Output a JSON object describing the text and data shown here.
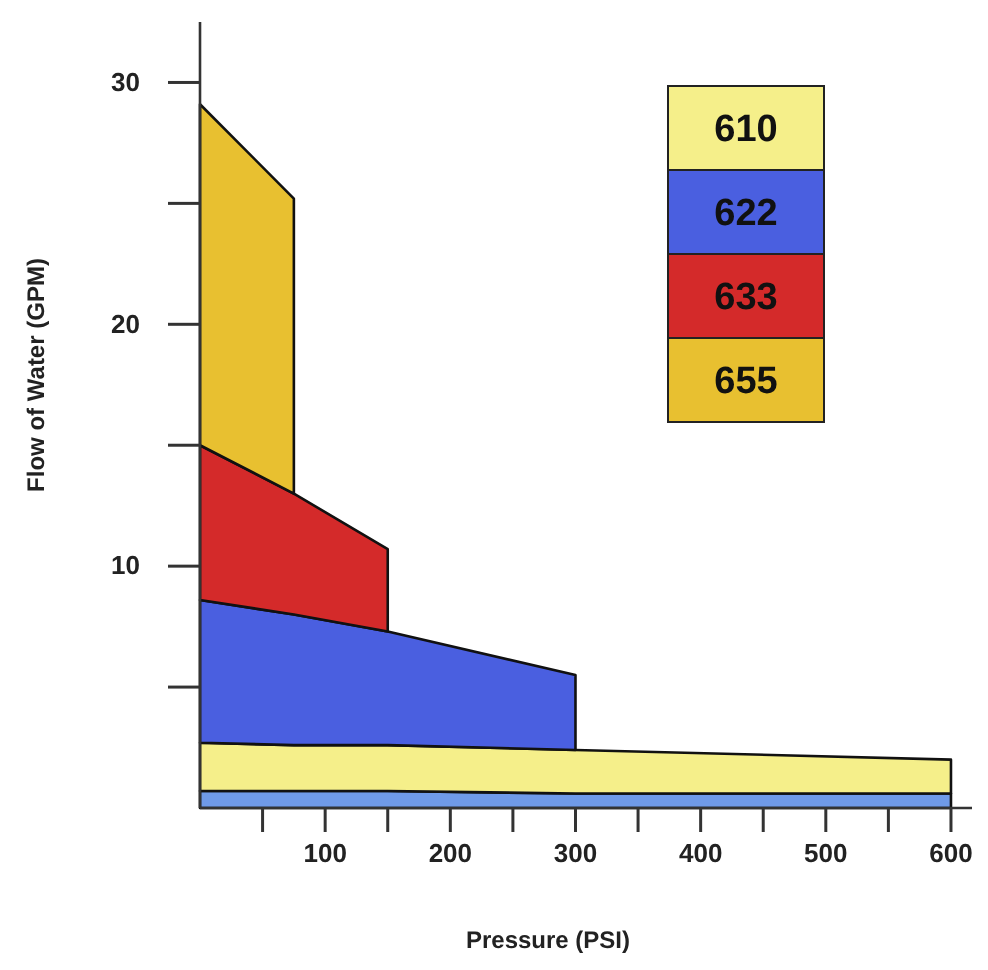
{
  "chart_data": {
    "type": "area",
    "stacked": true,
    "xlabel": "Pressure (PSI)",
    "ylabel": "Flow of Water (GPM)",
    "x": [
      0,
      75,
      150,
      300,
      600
    ],
    "xlim": [
      0,
      620
    ],
    "ylim": [
      0,
      32.5
    ],
    "xticks": [
      {
        "value": 50,
        "label": null
      },
      100,
      {
        "value": 150,
        "label": null
      },
      200,
      {
        "value": 250,
        "label": null
      },
      300,
      {
        "value": 350,
        "label": null
      },
      400,
      {
        "value": 450,
        "label": null
      },
      500,
      {
        "value": 550,
        "label": null
      },
      600
    ],
    "yticks": [
      {
        "value": 5,
        "label": null
      },
      10,
      {
        "value": 15,
        "label": null
      },
      20,
      {
        "value": 25,
        "label": null
      },
      30
    ],
    "legend": "top right",
    "series": [
      {
        "color": "#6f9ae8",
        "values": [
          0.7,
          0.7,
          0.7,
          0.6,
          0.6
        ]
      },
      {
        "name": "610",
        "color": "#f5ef8a",
        "values": [
          2.0,
          1.9,
          1.9,
          1.8,
          1.4
        ]
      },
      {
        "name": "622",
        "color": "#4a5fe0",
        "values": [
          5.9,
          5.4,
          4.7,
          3.1,
          null
        ]
      },
      {
        "name": "633",
        "color": "#d42a2a",
        "values": [
          6.4,
          5.0,
          3.4,
          null,
          null
        ]
      },
      {
        "name": "655",
        "color": "#e8c030",
        "values": [
          14.1,
          12.2,
          null,
          null,
          null
        ]
      }
    ]
  }
}
